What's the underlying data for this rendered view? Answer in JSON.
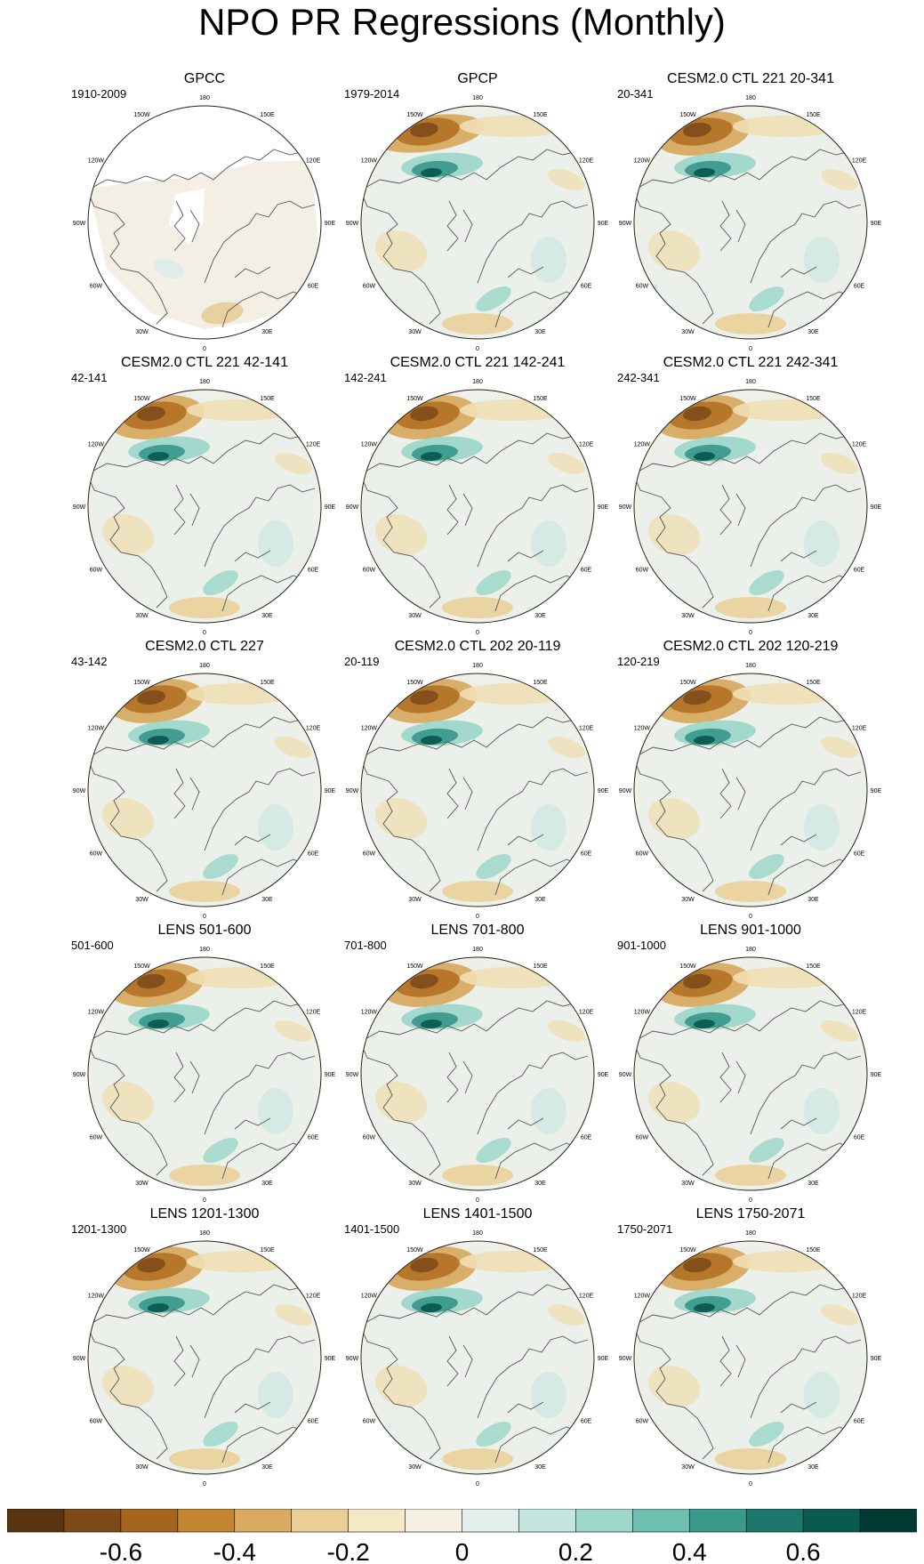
{
  "figure": {
    "title": "NPO PR Regressions (Monthly)",
    "longitude_labels": [
      "180",
      "150E",
      "120E",
      "90E",
      "60E",
      "30E",
      "0",
      "30W",
      "60W",
      "90W",
      "120W",
      "150W"
    ]
  },
  "panels": [
    {
      "title": "GPCC",
      "years": "1910-2009",
      "style": "gpcc"
    },
    {
      "title": "GPCP",
      "years": "1979-2014",
      "style": "obs"
    },
    {
      "title": "CESM2.0 CTL 221 20-341",
      "years": "20-341",
      "style": "model"
    },
    {
      "title": "CESM2.0 CTL 221 42-141",
      "years": "42-141",
      "style": "model"
    },
    {
      "title": "CESM2.0 CTL 221 142-241",
      "years": "142-241",
      "style": "model"
    },
    {
      "title": "CESM2.0 CTL 221 242-341",
      "years": "242-341",
      "style": "model"
    },
    {
      "title": "CESM2.0 CTL 227",
      "years": "43-142",
      "style": "model"
    },
    {
      "title": "CESM2.0 CTL 202 20-119",
      "years": "20-119",
      "style": "model"
    },
    {
      "title": "CESM2.0 CTL 202 120-219",
      "years": "120-219",
      "style": "model"
    },
    {
      "title": "LENS 501-600",
      "years": "501-600",
      "style": "model"
    },
    {
      "title": "LENS 701-800",
      "years": "701-800",
      "style": "model"
    },
    {
      "title": "LENS 901-1000",
      "years": "901-1000",
      "style": "model"
    },
    {
      "title": "LENS 1201-1300",
      "years": "1201-1300",
      "style": "model"
    },
    {
      "title": "LENS 1401-1500",
      "years": "1401-1500",
      "style": "model"
    },
    {
      "title": "LENS 1750-2071",
      "years": "1750-2071",
      "style": "model"
    }
  ],
  "colorbar": {
    "colors": [
      "#5a3410",
      "#7e4a18",
      "#a5651f",
      "#c38532",
      "#d8aa62",
      "#e9cf95",
      "#f5e9c8",
      "#f4f0e4",
      "#e3efec",
      "#c4e6df",
      "#9fd7ca",
      "#6fbfb0",
      "#3c9a8c",
      "#1b766b",
      "#0b5a50",
      "#013a33"
    ],
    "tick_labels": [
      "-0.6",
      "-0.4",
      "-0.2",
      "0",
      "0.2",
      "0.4",
      "0.6"
    ],
    "tick_values": [
      -0.6,
      -0.4,
      -0.2,
      0,
      0.2,
      0.4,
      0.6
    ],
    "range": [
      -0.8,
      0.8
    ]
  }
}
